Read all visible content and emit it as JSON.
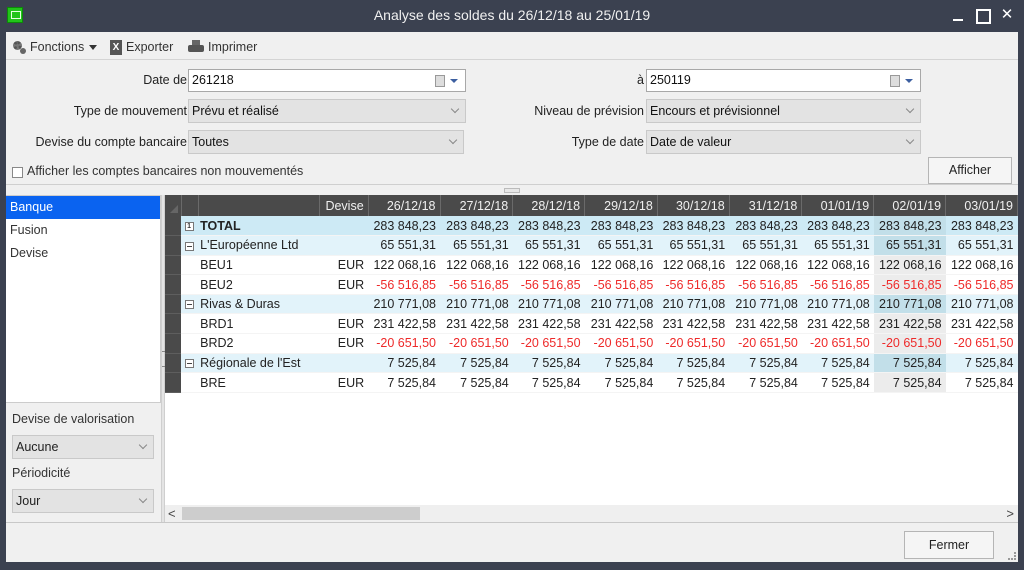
{
  "window": {
    "title": "Analyse des soldes du 26/12/18 au 25/01/19",
    "icon": "app-icon",
    "controls": [
      "minimize",
      "maximize",
      "close"
    ]
  },
  "toolbar": {
    "functions_label": "Fonctions",
    "export_label": "Exporter",
    "print_label": "Imprimer"
  },
  "filters": {
    "date_from_label": "Date de",
    "date_from_value": "261218",
    "date_to_label": "à",
    "date_to_value": "250119",
    "movement_type_label": "Type de mouvement",
    "movement_type_value": "Prévu et réalisé",
    "forecast_level_label": "Niveau de prévision",
    "forecast_level_value": "Encours et prévisionnel",
    "account_currency_label": "Devise du compte bancaire",
    "account_currency_value": "Toutes",
    "date_type_label": "Type de date",
    "date_type_value": "Date de valeur",
    "show_unmoved_label": "Afficher les comptes bancaires non mouvementés",
    "show_unmoved_checked": false,
    "show_button": "Afficher"
  },
  "sidebar": {
    "items": [
      {
        "label": "Banque",
        "active": true
      },
      {
        "label": "Fusion",
        "active": false
      },
      {
        "label": "Devise",
        "active": false
      }
    ],
    "valuation_currency_label": "Devise de valorisation",
    "valuation_currency_value": "Aucune",
    "periodicity_label": "Périodicité",
    "periodicity_value": "Jour"
  },
  "grid": {
    "columns": {
      "name": "",
      "currency": "Devise",
      "dates": [
        "26/12/18",
        "27/12/18",
        "28/12/18",
        "29/12/18",
        "30/12/18",
        "31/12/18",
        "01/01/19",
        "02/01/19",
        "03/01/19"
      ]
    },
    "highlight_column_index": 7,
    "rows": [
      {
        "type": "total",
        "name": "TOTAL",
        "currency": "",
        "value": "283 848,23",
        "negative": false
      },
      {
        "type": "group",
        "name": "L'Européenne Ltd",
        "currency": "",
        "value": "65 551,31",
        "negative": false
      },
      {
        "type": "acct",
        "name": "BEU1",
        "currency": "EUR",
        "value": "122 068,16",
        "negative": false
      },
      {
        "type": "acct",
        "name": "BEU2",
        "currency": "EUR",
        "value": "-56 516,85",
        "negative": true
      },
      {
        "type": "group",
        "name": "Rivas & Duras",
        "currency": "",
        "value": "210 771,08",
        "negative": false
      },
      {
        "type": "acct",
        "name": "BRD1",
        "currency": "EUR",
        "value": "231 422,58",
        "negative": false
      },
      {
        "type": "acct",
        "name": "BRD2",
        "currency": "EUR",
        "value": "-20 651,50",
        "negative": true
      },
      {
        "type": "group",
        "name": "Régionale de l'Est",
        "currency": "",
        "value": "7 525,84",
        "negative": false
      },
      {
        "type": "acct",
        "name": "BRE",
        "currency": "EUR",
        "value": "7 525,84",
        "negative": false
      }
    ]
  },
  "scrollbar": {
    "left_arrow": "<",
    "right_arrow": ">"
  },
  "footer": {
    "close_button": "Fermer"
  },
  "colors": {
    "title_bar": "#3b4150",
    "selection": "#0a63f0",
    "header_bg": "#4a4a4a",
    "total_row": "#cdeaf5",
    "group_row": "#e2f3fa",
    "negative": "#ee2a2a"
  }
}
